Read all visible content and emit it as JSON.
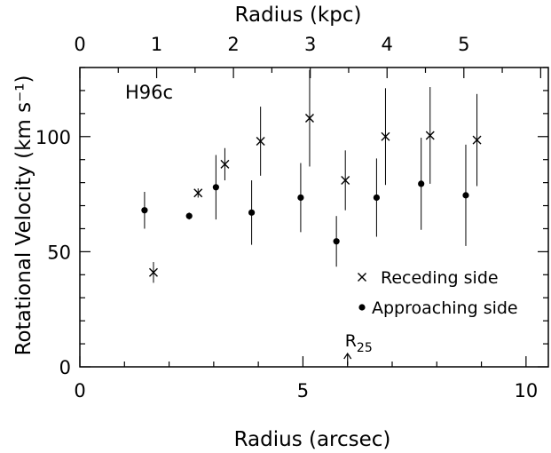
{
  "chart_data": {
    "type": "scatter",
    "label": "H96c",
    "xlabel": "Radius (arcsec)",
    "x2label": "Radius (kpc)",
    "ylabel": "Rotational Velocity (km s⁻¹)",
    "xlim": [
      0,
      10.5
    ],
    "ylim": [
      0,
      130
    ],
    "x2lim": [
      0,
      6.1
    ],
    "xticks": [
      0,
      5,
      10
    ],
    "yticks": [
      0,
      50,
      100
    ],
    "x2ticks": [
      0,
      1,
      2,
      3,
      4,
      5
    ],
    "legend_position": "bottom-right",
    "series": [
      {
        "name": "Receding side",
        "marker": "x",
        "points": [
          {
            "x": 1.65,
            "y": 41,
            "yerr": [
              4.5,
              4.5
            ]
          },
          {
            "x": 2.65,
            "y": 75.5,
            "yerr": [
              2,
              2
            ]
          },
          {
            "x": 3.25,
            "y": 88,
            "yerr": [
              7,
              7
            ]
          },
          {
            "x": 4.05,
            "y": 98,
            "yerr": [
              15,
              15
            ]
          },
          {
            "x": 5.15,
            "y": 108,
            "yerr": [
              21,
              21
            ]
          },
          {
            "x": 5.95,
            "y": 81,
            "yerr": [
              13,
              13
            ]
          },
          {
            "x": 6.85,
            "y": 100,
            "yerr": [
              21,
              21
            ]
          },
          {
            "x": 7.85,
            "y": 100.5,
            "yerr": [
              21,
              21
            ]
          },
          {
            "x": 8.9,
            "y": 98.5,
            "yerr": [
              20,
              20
            ]
          }
        ]
      },
      {
        "name": "Approaching side",
        "marker": "dot",
        "points": [
          {
            "x": 1.45,
            "y": 68,
            "yerr": [
              8,
              8
            ]
          },
          {
            "x": 2.45,
            "y": 65.5,
            "yerr": [
              1.5,
              1.5
            ]
          },
          {
            "x": 3.05,
            "y": 78,
            "yerr": [
              14,
              14
            ]
          },
          {
            "x": 3.85,
            "y": 67,
            "yerr": [
              14,
              14
            ]
          },
          {
            "x": 4.95,
            "y": 73.5,
            "yerr": [
              15,
              15
            ]
          },
          {
            "x": 5.75,
            "y": 54.5,
            "yerr": [
              11,
              11
            ]
          },
          {
            "x": 6.65,
            "y": 73.5,
            "yerr": [
              17,
              17
            ]
          },
          {
            "x": 7.65,
            "y": 79.5,
            "yerr": [
              20,
              20
            ]
          },
          {
            "x": 8.65,
            "y": 74.5,
            "yerr": [
              22,
              22
            ]
          }
        ]
      }
    ],
    "annotations": [
      {
        "text": "R25",
        "base": "R",
        "sub": "25",
        "x": 6.0,
        "y": 0
      }
    ]
  }
}
